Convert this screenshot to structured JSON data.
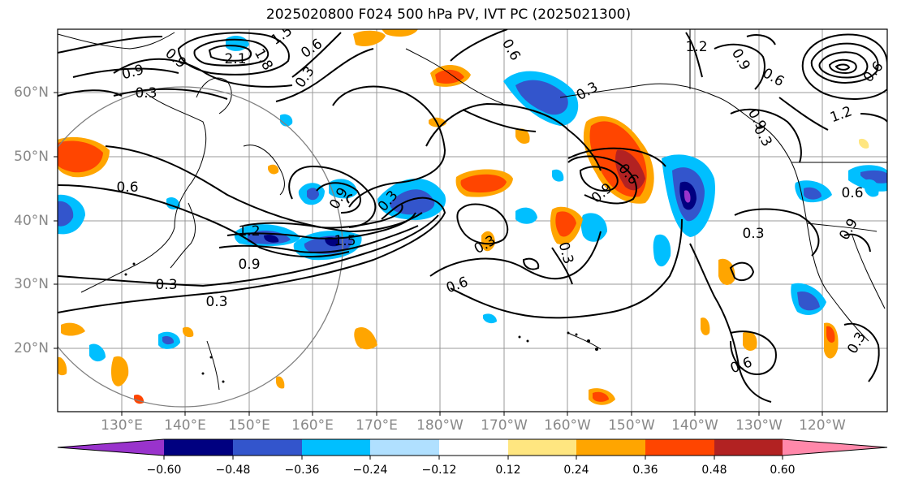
{
  "title": "2025020800 F024 500 hPa PV, IVT PC (2025021300)",
  "lat_labels": [
    "60°N",
    "50°N",
    "40°N",
    "30°N",
    "20°N"
  ],
  "lon_labels": [
    "130°E",
    "140°E",
    "150°E",
    "160°E",
    "170°E",
    "180°W",
    "170°W",
    "160°W",
    "150°W",
    "140°W",
    "130°W",
    "120°W"
  ],
  "colorbar": {
    "ticks": [
      "−0.60",
      "−0.48",
      "−0.36",
      "−0.24",
      "−0.12",
      "0.12",
      "0.24",
      "0.36",
      "0.48",
      "0.60"
    ],
    "colors": [
      "#9933cc",
      "#000080",
      "#3355cc",
      "#00bfff",
      "#b0e0ff",
      "#ffffff",
      "#ffe680",
      "#ffa500",
      "#ff4500",
      "#b22222",
      "#ff88aa"
    ]
  },
  "contour_labels": [
    "0.9",
    "0.9",
    "0.3",
    "0.6",
    "1.2",
    "0.9",
    "0.3",
    "0.3",
    "1.5",
    "0.6",
    "2.1",
    "1.8",
    "0.3",
    "0.6",
    "1.5",
    "0.9",
    "0.3",
    "0.3",
    "0.6",
    "0.6",
    "0.3",
    "0.9",
    "0.3",
    "0.6",
    "0.3",
    "0.9",
    "0.6",
    "0.9",
    "1.2",
    "1.2",
    "0.6",
    "0.3",
    "0.9",
    "0.6",
    "0.3"
  ],
  "colors": {
    "pv_negative": "#3355cc",
    "pv_positive": "#ff4500",
    "contour": "#000000",
    "grid": "#999999"
  }
}
